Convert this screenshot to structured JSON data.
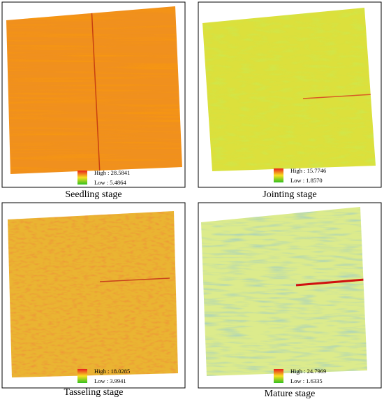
{
  "panels": [
    {
      "caption": "Seedling stage",
      "high": "High : 28.5841",
      "low": "Low : 5.4864"
    },
    {
      "caption": "Jointing stage",
      "high": "High : 15.7746",
      "low": "Low : 1.8570"
    },
    {
      "caption": "Tasseling stage",
      "high": "High : 18.0285",
      "low": "Low : 3.9941"
    },
    {
      "caption": "Mature stage",
      "high": "High : 24.7969",
      "low": "Low : 1.6335"
    }
  ]
}
